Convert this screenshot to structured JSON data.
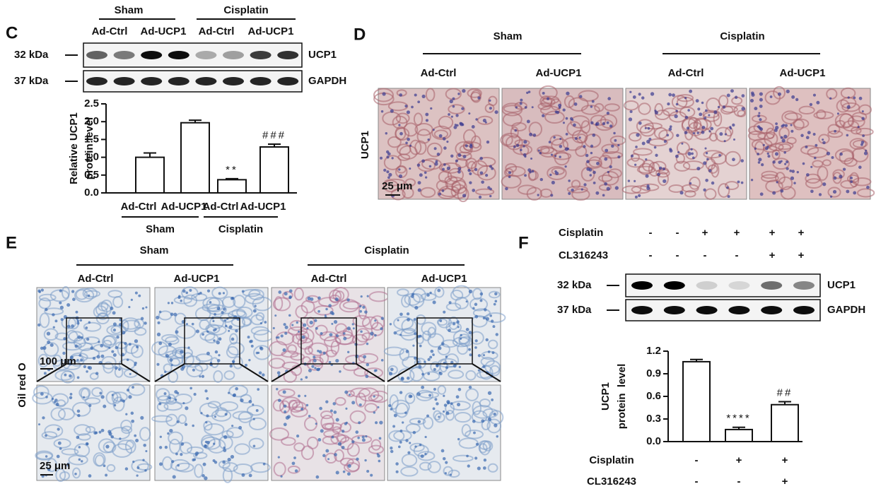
{
  "panels": {
    "c": {
      "letter": "C",
      "groups": [
        "Sham",
        "Cisplatin"
      ],
      "lanes": [
        "Ad-Ctrl",
        "Ad-UCP1",
        "Ad-Ctrl",
        "Ad-UCP1"
      ],
      "blots": [
        {
          "size": "32 kDa",
          "protein": "UCP1"
        },
        {
          "size": "37 kDa",
          "protein": "GAPDH"
        }
      ]
    },
    "d": {
      "letter": "D",
      "groups": [
        "Sham",
        "Cisplatin"
      ],
      "lanes": [
        "Ad-Ctrl",
        "Ad-UCP1",
        "Ad-Ctrl",
        "Ad-UCP1"
      ],
      "row_label": "UCP1",
      "scale_bar": "25 μm"
    },
    "e": {
      "letter": "E",
      "groups": [
        "Sham",
        "Cisplatin"
      ],
      "lanes": [
        "Ad-Ctrl",
        "Ad-UCP1",
        "Ad-Ctrl",
        "Ad-UCP1"
      ],
      "row_label": "Oil red O",
      "scale_bars": [
        "100 μm",
        "25 μm"
      ]
    },
    "f": {
      "letter": "F",
      "treatments": [
        {
          "name": "Cisplatin",
          "signs": [
            "-",
            "-",
            "+",
            "+",
            "+",
            "+"
          ]
        },
        {
          "name": "CL316243",
          "signs": [
            "-",
            "-",
            "-",
            "-",
            "+",
            "+"
          ]
        }
      ],
      "blots": [
        {
          "size": "32 kDa",
          "protein": "UCP1"
        },
        {
          "size": "37 kDa",
          "protein": "GAPDH"
        }
      ]
    }
  },
  "chart_data": [
    {
      "type": "bar",
      "y_label_lines": [
        "Relative UCP1",
        "protein level"
      ],
      "categories": [
        "Ad-Ctrl",
        "Ad-UCP1",
        "Ad-Ctrl",
        "Ad-UCP1"
      ],
      "groups": [
        "Sham",
        "Cisplatin"
      ],
      "values": [
        1.0,
        1.97,
        0.37,
        1.29
      ],
      "errors": [
        0.12,
        0.07,
        0.03,
        0.08
      ],
      "annotations": [
        null,
        null,
        "**",
        "###"
      ],
      "color": "#ffffff",
      "ylim": [
        0,
        2.5
      ],
      "yticks": [
        {
          "value": 0,
          "label": "0.0"
        },
        0.5,
        {
          "value": 1,
          "label": "1.0"
        },
        1.5,
        {
          "value": 2,
          "label": "2.0"
        },
        2.5
      ]
    },
    {
      "type": "bar",
      "y_label_lines": [
        "UCP1",
        "protein  level"
      ],
      "categories": [
        null,
        null,
        null
      ],
      "values": [
        1.06,
        0.16,
        0.49
      ],
      "errors": [
        0.03,
        0.03,
        0.04
      ],
      "annotations": [
        null,
        "****",
        "##"
      ],
      "color": "#ffffff",
      "treatments": [
        {
          "name": "Cisplatin",
          "signs": [
            "-",
            "+",
            "+"
          ]
        },
        {
          "name": "CL316243",
          "signs": [
            "-",
            "-",
            "+"
          ]
        }
      ],
      "ylim": [
        0,
        1.2
      ],
      "yticks": [
        {
          "value": 0,
          "label": "0.0"
        },
        0.3,
        0.6,
        0.9,
        1.2
      ]
    }
  ]
}
